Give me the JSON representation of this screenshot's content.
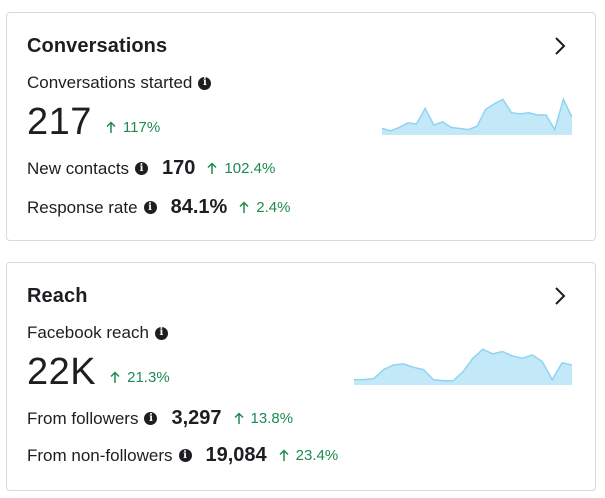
{
  "cards": {
    "conversations": {
      "title": "Conversations",
      "metric_label": "Conversations started",
      "metric_value": "217",
      "metric_change": "117%",
      "rows": [
        {
          "label": "New contacts",
          "value": "170",
          "change": "102.4%"
        },
        {
          "label": "Response rate",
          "value": "84.1%",
          "change": "2.4%"
        }
      ],
      "sparkline": [
        4,
        2,
        5,
        9,
        8,
        22,
        7,
        10,
        5,
        4,
        3,
        6,
        21,
        26,
        30,
        18,
        17,
        18,
        16,
        16,
        3,
        30,
        14
      ]
    },
    "reach": {
      "title": "Reach",
      "metric_label": "Facebook reach",
      "metric_value": "22K",
      "metric_change": "21.3%",
      "rows": [
        {
          "label": "From followers",
          "value": "3,297",
          "change": "13.8%"
        },
        {
          "label": "From non-followers",
          "value": "19,084",
          "change": "23.4%"
        }
      ],
      "sparkline": [
        3,
        3,
        4,
        12,
        16,
        17,
        14,
        12,
        3,
        2,
        2,
        10,
        22,
        30,
        26,
        28,
        24,
        22,
        25,
        19,
        3,
        18,
        16
      ]
    }
  },
  "icons": {
    "chevron": "chevron-right-icon",
    "info": "info-icon",
    "up_arrow": "arrow-up-icon"
  },
  "colors": {
    "positive": "#1e8a4f",
    "spark_fill": "#c3e8f8",
    "spark_line": "#8fd3f2"
  }
}
